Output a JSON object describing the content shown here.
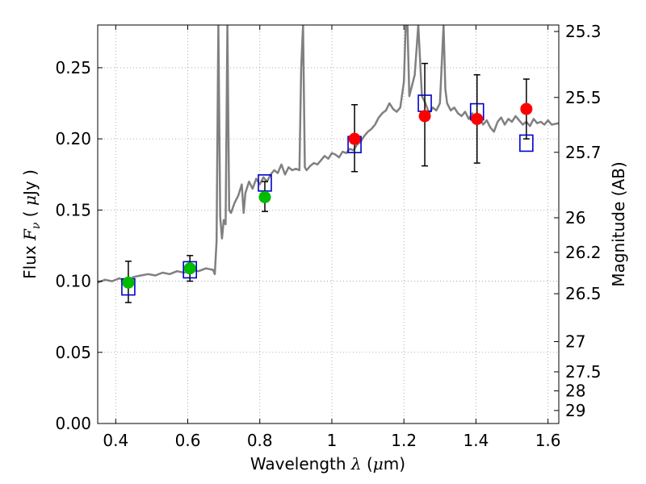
{
  "chart_data": {
    "type": "scatter",
    "xlabel": "Wavelength",
    "xlabel_symbol": "λ",
    "xlabel_unit_open": "(",
    "xlabel_unit_mu": "μ",
    "xlabel_unit_rest": "m)",
    "ylabel": "Flux",
    "ylabel_symbol": "F",
    "ylabel_subscript": "ν",
    "ylabel_unit_open": "(",
    "ylabel_unit_mu": "μ",
    "ylabel_unit_rest": "Jy",
    "ylabel_unit_close": ")",
    "y2label": "Magnitude (AB)",
    "xlim": [
      0.35,
      1.63
    ],
    "ylim": [
      0.0,
      0.28
    ],
    "grid": true,
    "x_ticks": [
      {
        "value": 0.4,
        "label": "0.4"
      },
      {
        "value": 0.6,
        "label": "0.6"
      },
      {
        "value": 0.8,
        "label": "0.8"
      },
      {
        "value": 1.0,
        "label": "1"
      },
      {
        "value": 1.2,
        "label": "1.2"
      },
      {
        "value": 1.4,
        "label": "1.4"
      },
      {
        "value": 1.6,
        "label": "1.6"
      }
    ],
    "y_ticks": [
      {
        "value": 0.0,
        "label": "0.00"
      },
      {
        "value": 0.05,
        "label": "0.05"
      },
      {
        "value": 0.1,
        "label": "0.10"
      },
      {
        "value": 0.15,
        "label": "0.15"
      },
      {
        "value": 0.2,
        "label": "0.20"
      },
      {
        "value": 0.25,
        "label": "0.25"
      }
    ],
    "y2_ticks": [
      {
        "value": 25.3,
        "label": "25.3"
      },
      {
        "value": 25.5,
        "label": "25.5"
      },
      {
        "value": 25.7,
        "label": "25.7"
      },
      {
        "value": 26.0,
        "label": "26"
      },
      {
        "value": 26.2,
        "label": "26.2"
      },
      {
        "value": 26.5,
        "label": "26.5"
      },
      {
        "value": 27.0,
        "label": "27"
      },
      {
        "value": 27.5,
        "label": "27.5"
      },
      {
        "value": 28.0,
        "label": "28"
      },
      {
        "value": 29.0,
        "label": "29"
      }
    ],
    "colors": {
      "model": "#808080",
      "model_photometry": "#0000cc",
      "optical_photometry": "#00bb00",
      "nir_photometry": "#ff0000",
      "errorbar": "#000000",
      "grid": "#999999"
    },
    "model_spectrum": [
      [
        0.35,
        0.099
      ],
      [
        0.37,
        0.101
      ],
      [
        0.39,
        0.1
      ],
      [
        0.41,
        0.102
      ],
      [
        0.43,
        0.1
      ],
      [
        0.45,
        0.103
      ],
      [
        0.47,
        0.104
      ],
      [
        0.49,
        0.105
      ],
      [
        0.51,
        0.104
      ],
      [
        0.53,
        0.106
      ],
      [
        0.55,
        0.105
      ],
      [
        0.57,
        0.107
      ],
      [
        0.59,
        0.106
      ],
      [
        0.61,
        0.108
      ],
      [
        0.63,
        0.107
      ],
      [
        0.65,
        0.109
      ],
      [
        0.67,
        0.108
      ],
      [
        0.675,
        0.105
      ],
      [
        0.68,
        0.128
      ],
      [
        0.685,
        0.28
      ],
      [
        0.69,
        0.145
      ],
      [
        0.695,
        0.13
      ],
      [
        0.7,
        0.143
      ],
      [
        0.705,
        0.14
      ],
      [
        0.71,
        0.28
      ],
      [
        0.715,
        0.15
      ],
      [
        0.72,
        0.148
      ],
      [
        0.73,
        0.155
      ],
      [
        0.74,
        0.16
      ],
      [
        0.75,
        0.168
      ],
      [
        0.755,
        0.148
      ],
      [
        0.76,
        0.162
      ],
      [
        0.77,
        0.17
      ],
      [
        0.78,
        0.165
      ],
      [
        0.79,
        0.172
      ],
      [
        0.8,
        0.168
      ],
      [
        0.81,
        0.173
      ],
      [
        0.82,
        0.17
      ],
      [
        0.83,
        0.175
      ],
      [
        0.84,
        0.178
      ],
      [
        0.85,
        0.176
      ],
      [
        0.86,
        0.182
      ],
      [
        0.87,
        0.175
      ],
      [
        0.88,
        0.18
      ],
      [
        0.89,
        0.178
      ],
      [
        0.9,
        0.179
      ],
      [
        0.91,
        0.178
      ],
      [
        0.915,
        0.25
      ],
      [
        0.92,
        0.28
      ],
      [
        0.925,
        0.18
      ],
      [
        0.93,
        0.178
      ],
      [
        0.94,
        0.181
      ],
      [
        0.95,
        0.183
      ],
      [
        0.96,
        0.182
      ],
      [
        0.97,
        0.185
      ],
      [
        0.98,
        0.188
      ],
      [
        0.99,
        0.186
      ],
      [
        1.0,
        0.19
      ],
      [
        1.01,
        0.189
      ],
      [
        1.02,
        0.187
      ],
      [
        1.03,
        0.191
      ],
      [
        1.04,
        0.19
      ],
      [
        1.05,
        0.193
      ],
      [
        1.06,
        0.192
      ],
      [
        1.07,
        0.196
      ],
      [
        1.08,
        0.198
      ],
      [
        1.09,
        0.202
      ],
      [
        1.1,
        0.205
      ],
      [
        1.11,
        0.207
      ],
      [
        1.12,
        0.21
      ],
      [
        1.13,
        0.215
      ],
      [
        1.14,
        0.218
      ],
      [
        1.15,
        0.22
      ],
      [
        1.16,
        0.225
      ],
      [
        1.17,
        0.221
      ],
      [
        1.18,
        0.219
      ],
      [
        1.19,
        0.222
      ],
      [
        1.2,
        0.24
      ],
      [
        1.205,
        0.28
      ],
      [
        1.21,
        0.28
      ],
      [
        1.215,
        0.23
      ],
      [
        1.22,
        0.235
      ],
      [
        1.23,
        0.245
      ],
      [
        1.24,
        0.28
      ],
      [
        1.25,
        0.23
      ],
      [
        1.26,
        0.225
      ],
      [
        1.27,
        0.218
      ],
      [
        1.28,
        0.222
      ],
      [
        1.29,
        0.22
      ],
      [
        1.3,
        0.225
      ],
      [
        1.31,
        0.28
      ],
      [
        1.315,
        0.235
      ],
      [
        1.32,
        0.225
      ],
      [
        1.33,
        0.22
      ],
      [
        1.34,
        0.222
      ],
      [
        1.35,
        0.218
      ],
      [
        1.36,
        0.216
      ],
      [
        1.37,
        0.219
      ],
      [
        1.38,
        0.214
      ],
      [
        1.39,
        0.218
      ],
      [
        1.4,
        0.212
      ],
      [
        1.41,
        0.215
      ],
      [
        1.42,
        0.21
      ],
      [
        1.43,
        0.213
      ],
      [
        1.44,
        0.208
      ],
      [
        1.45,
        0.205
      ],
      [
        1.46,
        0.212
      ],
      [
        1.47,
        0.215
      ],
      [
        1.48,
        0.21
      ],
      [
        1.49,
        0.214
      ],
      [
        1.5,
        0.212
      ],
      [
        1.51,
        0.216
      ],
      [
        1.52,
        0.213
      ],
      [
        1.53,
        0.21
      ],
      [
        1.54,
        0.212
      ],
      [
        1.55,
        0.209
      ],
      [
        1.56,
        0.214
      ],
      [
        1.57,
        0.211
      ],
      [
        1.58,
        0.212
      ],
      [
        1.59,
        0.21
      ],
      [
        1.6,
        0.213
      ],
      [
        1.61,
        0.21
      ],
      [
        1.63,
        0.211
      ]
    ],
    "model_photometry": [
      {
        "x": 0.435,
        "y": 0.096
      },
      {
        "x": 0.606,
        "y": 0.108
      },
      {
        "x": 0.814,
        "y": 0.169
      },
      {
        "x": 1.063,
        "y": 0.196
      },
      {
        "x": 1.258,
        "y": 0.225
      },
      {
        "x": 1.403,
        "y": 0.219
      },
      {
        "x": 1.54,
        "y": 0.197
      }
    ],
    "optical_photometry": [
      {
        "x": 0.435,
        "y": 0.099,
        "yerr_low": 0.014,
        "yerr_high": 0.015
      },
      {
        "x": 0.606,
        "y": 0.109,
        "yerr_low": 0.009,
        "yerr_high": 0.009
      },
      {
        "x": 0.814,
        "y": 0.159,
        "yerr_low": 0.01,
        "yerr_high": 0.011
      }
    ],
    "nir_photometry": [
      {
        "x": 1.063,
        "y": 0.2,
        "yerr_low": 0.023,
        "yerr_high": 0.024
      },
      {
        "x": 1.258,
        "y": 0.216,
        "yerr_low": 0.035,
        "yerr_high": 0.037
      },
      {
        "x": 1.403,
        "y": 0.214,
        "yerr_low": 0.031,
        "yerr_high": 0.031
      },
      {
        "x": 1.54,
        "y": 0.221,
        "yerr_low": 0.021,
        "yerr_high": 0.021
      }
    ]
  }
}
